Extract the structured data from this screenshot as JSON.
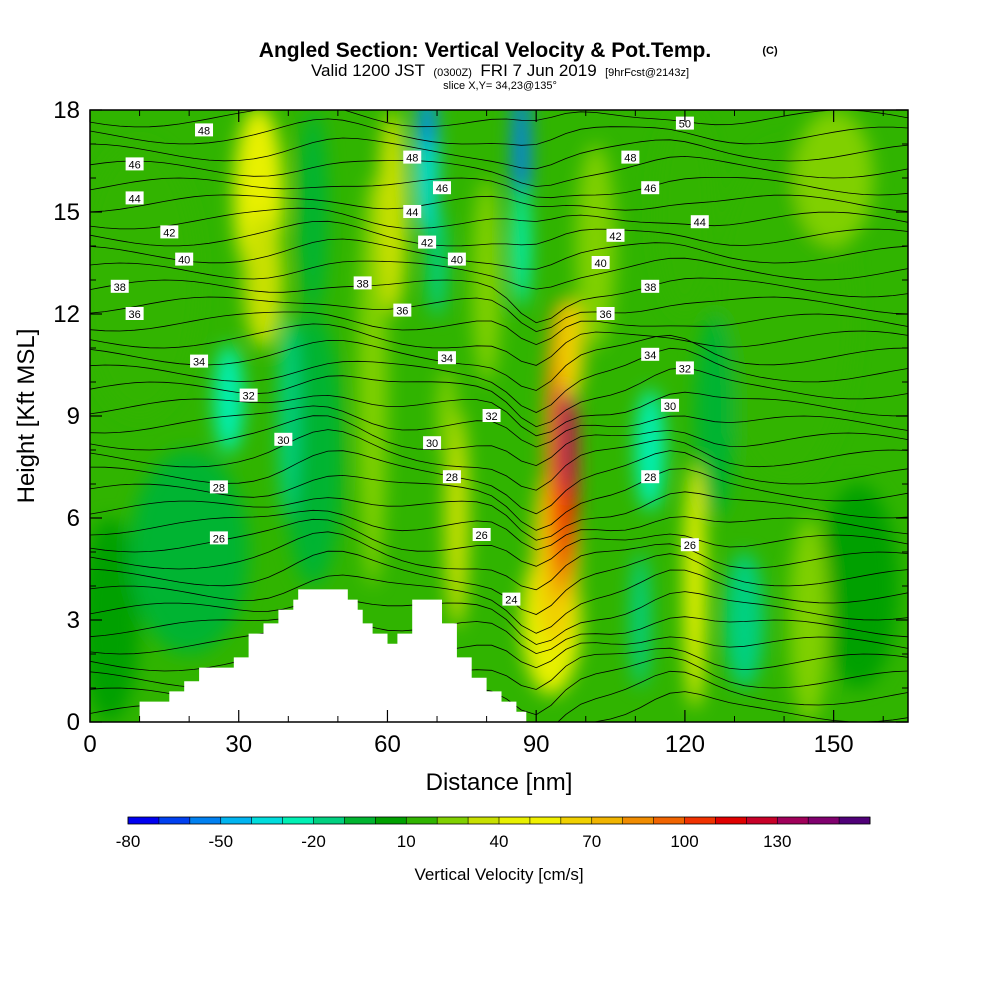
{
  "chart_data": {
    "type": "heatmap",
    "title": "Angled Section: Vertical Velocity & Pot.Temp.",
    "title_units": "(C)",
    "subtitle_main": "Valid 1200 JST",
    "subtitle_utc": "(0300Z)",
    "subtitle_date": "FRI 7 Jun 2019",
    "subtitle_fcst": "[9hrFcst@2143z]",
    "slice_info": "slice X,Y= 34,23@135°",
    "xlabel": "Distance [nm]",
    "ylabel": "Height [Kft MSL]",
    "xlim": [
      0,
      165
    ],
    "ylim": [
      0,
      18
    ],
    "x_ticks": [
      "0",
      "30",
      "60",
      "90",
      "120",
      "150"
    ],
    "y_ticks": [
      "0",
      "3",
      "6",
      "9",
      "12",
      "15",
      "18"
    ],
    "colorbar": {
      "label": "Vertical Velocity [cm/s]",
      "tick_labels": [
        "-80",
        "-50",
        "-20",
        "10",
        "40",
        "70",
        "100",
        "130"
      ],
      "colors": [
        "#0000f0",
        "#0040f0",
        "#0080f0",
        "#00b4f0",
        "#00dcdc",
        "#00f0b4",
        "#00d080",
        "#00b430",
        "#00a000",
        "#30b400",
        "#80d000",
        "#c8e000",
        "#e8f000",
        "#f0f000",
        "#f0d000",
        "#f0b400",
        "#f08c00",
        "#f06400",
        "#f03200",
        "#e00000",
        "#c80028",
        "#a0005a",
        "#80006e",
        "#500078"
      ]
    },
    "velocity_features": [
      {
        "x": 96,
        "y": 8.5,
        "velocity": 130
      },
      {
        "x": 95,
        "y": 6,
        "velocity": 90
      },
      {
        "x": 93,
        "y": 3,
        "velocity": 40
      },
      {
        "x": 34,
        "y": 15,
        "velocity": 40
      },
      {
        "x": 74,
        "y": 6,
        "velocity": 35
      },
      {
        "x": 122,
        "y": 4,
        "velocity": 40
      },
      {
        "x": 61,
        "y": 15,
        "velocity": 35
      },
      {
        "x": 68,
        "y": 17,
        "velocity": -60
      },
      {
        "x": 87,
        "y": 17,
        "velocity": -55
      },
      {
        "x": 113,
        "y": 8,
        "velocity": -30
      },
      {
        "x": 28,
        "y": 9.5,
        "velocity": -25
      }
    ],
    "contour_labels": [
      {
        "text": "48",
        "x": 23,
        "y": 17.4
      },
      {
        "text": "46",
        "x": 9,
        "y": 16.4
      },
      {
        "text": "44",
        "x": 9,
        "y": 15.4
      },
      {
        "text": "42",
        "x": 16,
        "y": 14.4
      },
      {
        "text": "40",
        "x": 19,
        "y": 13.6
      },
      {
        "text": "38",
        "x": 6,
        "y": 12.8
      },
      {
        "text": "36",
        "x": 9,
        "y": 12.0
      },
      {
        "text": "34",
        "x": 22,
        "y": 10.6
      },
      {
        "text": "32",
        "x": 32,
        "y": 9.6
      },
      {
        "text": "30",
        "x": 39,
        "y": 8.3
      },
      {
        "text": "28",
        "x": 26,
        "y": 6.9
      },
      {
        "text": "26",
        "x": 26,
        "y": 5.4
      },
      {
        "text": "38",
        "x": 55,
        "y": 12.9
      },
      {
        "text": "36",
        "x": 63,
        "y": 12.1
      },
      {
        "text": "34",
        "x": 72,
        "y": 10.7
      },
      {
        "text": "32",
        "x": 81,
        "y": 9.0
      },
      {
        "text": "30",
        "x": 69,
        "y": 8.2
      },
      {
        "text": "28",
        "x": 73,
        "y": 7.2
      },
      {
        "text": "26",
        "x": 79,
        "y": 5.5
      },
      {
        "text": "24",
        "x": 85,
        "y": 3.6
      },
      {
        "text": "48",
        "x": 65,
        "y": 16.6
      },
      {
        "text": "46",
        "x": 71,
        "y": 15.7
      },
      {
        "text": "44",
        "x": 65,
        "y": 15.0
      },
      {
        "text": "42",
        "x": 68,
        "y": 14.1
      },
      {
        "text": "40",
        "x": 74,
        "y": 13.6
      },
      {
        "text": "50",
        "x": 120,
        "y": 17.6
      },
      {
        "text": "48",
        "x": 109,
        "y": 16.6
      },
      {
        "text": "46",
        "x": 113,
        "y": 15.7
      },
      {
        "text": "44",
        "x": 123,
        "y": 14.7
      },
      {
        "text": "42",
        "x": 106,
        "y": 14.3
      },
      {
        "text": "40",
        "x": 103,
        "y": 13.5
      },
      {
        "text": "38",
        "x": 113,
        "y": 12.8
      },
      {
        "text": "36",
        "x": 104,
        "y": 12.0
      },
      {
        "text": "34",
        "x": 113,
        "y": 10.8
      },
      {
        "text": "32",
        "x": 120,
        "y": 10.4
      },
      {
        "text": "30",
        "x": 117,
        "y": 9.3
      },
      {
        "text": "28",
        "x": 113,
        "y": 7.2
      },
      {
        "text": "26",
        "x": 121,
        "y": 5.2
      }
    ],
    "terrain_profile": [
      [
        0,
        0
      ],
      [
        10,
        0
      ],
      [
        10,
        0.6
      ],
      [
        16,
        0.6
      ],
      [
        16,
        0.9
      ],
      [
        19,
        0.9
      ],
      [
        19,
        1.2
      ],
      [
        22,
        1.2
      ],
      [
        22,
        1.6
      ],
      [
        29,
        1.6
      ],
      [
        29,
        1.9
      ],
      [
        32,
        1.9
      ],
      [
        32,
        2.6
      ],
      [
        35,
        2.6
      ],
      [
        35,
        2.9
      ],
      [
        38,
        2.9
      ],
      [
        38,
        3.3
      ],
      [
        41,
        3.3
      ],
      [
        41,
        3.6
      ],
      [
        42,
        3.6
      ],
      [
        42,
        3.9
      ],
      [
        52,
        3.9
      ],
      [
        52,
        3.6
      ],
      [
        54,
        3.6
      ],
      [
        54,
        3.3
      ],
      [
        55,
        3.3
      ],
      [
        55,
        2.9
      ],
      [
        57,
        2.9
      ],
      [
        57,
        2.6
      ],
      [
        60,
        2.6
      ],
      [
        60,
        2.3
      ],
      [
        62,
        2.3
      ],
      [
        62,
        2.6
      ],
      [
        65,
        2.6
      ],
      [
        65,
        3.6
      ],
      [
        71,
        3.6
      ],
      [
        71,
        2.9
      ],
      [
        74,
        2.9
      ],
      [
        74,
        1.9
      ],
      [
        77,
        1.9
      ],
      [
        77,
        1.3
      ],
      [
        80,
        1.3
      ],
      [
        80,
        0.9
      ],
      [
        83,
        0.9
      ],
      [
        83,
        0.6
      ],
      [
        86,
        0.6
      ],
      [
        86,
        0.3
      ],
      [
        88,
        0.3
      ],
      [
        88,
        0
      ],
      [
        165,
        0
      ]
    ]
  }
}
